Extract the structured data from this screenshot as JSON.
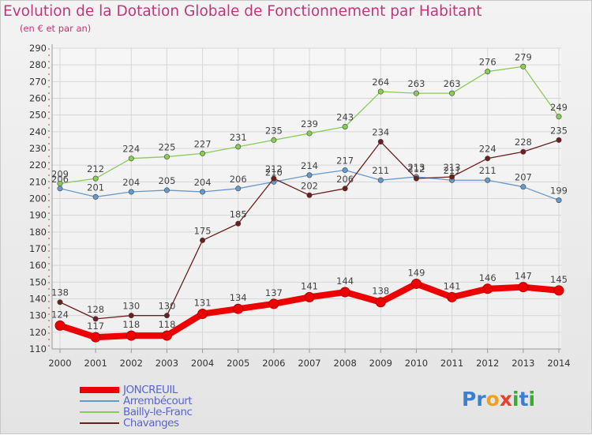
{
  "title": "Evolution de la Dotation Globale de Fonctionnement par Habitant",
  "subtitle": "(en € et par an)",
  "logo": "Proxiti",
  "chart_data": {
    "type": "line",
    "title": "Evolution de la Dotation Globale de Fonctionnement par Habitant",
    "subtitle": "(en € et par an)",
    "x": [
      "2000",
      "2001",
      "2002",
      "2003",
      "2004",
      "2005",
      "2006",
      "2007",
      "2008",
      "2009",
      "2010",
      "2011",
      "2012",
      "2013",
      "2014"
    ],
    "ylim": [
      110,
      290
    ],
    "yticks": [
      110,
      120,
      130,
      140,
      150,
      160,
      170,
      180,
      190,
      200,
      210,
      220,
      230,
      240,
      250,
      260,
      270,
      280,
      290
    ],
    "grid": true,
    "legend_position": "bottom-left",
    "series": [
      {
        "name": "JONCREUIL",
        "color": "#ee0000",
        "emphasis": true,
        "values": [
          124,
          117,
          118,
          118,
          131,
          134,
          137,
          141,
          144,
          138,
          149,
          141,
          146,
          147,
          145
        ]
      },
      {
        "name": "Arrembécourt",
        "color": "#6699cc",
        "values": [
          206,
          201,
          204,
          205,
          204,
          206,
          210,
          214,
          217,
          211,
          213,
          211,
          211,
          207,
          199
        ]
      },
      {
        "name": "Bailly-le-Franc",
        "color": "#88cc55",
        "values": [
          209,
          212,
          224,
          225,
          227,
          231,
          235,
          239,
          243,
          264,
          263,
          263,
          276,
          279,
          249
        ]
      },
      {
        "name": "Chavanges",
        "color": "#6b1f1f",
        "values": [
          138,
          128,
          130,
          130,
          175,
          185,
          212,
          202,
          206,
          234,
          212,
          213,
          224,
          228,
          235
        ]
      }
    ]
  }
}
